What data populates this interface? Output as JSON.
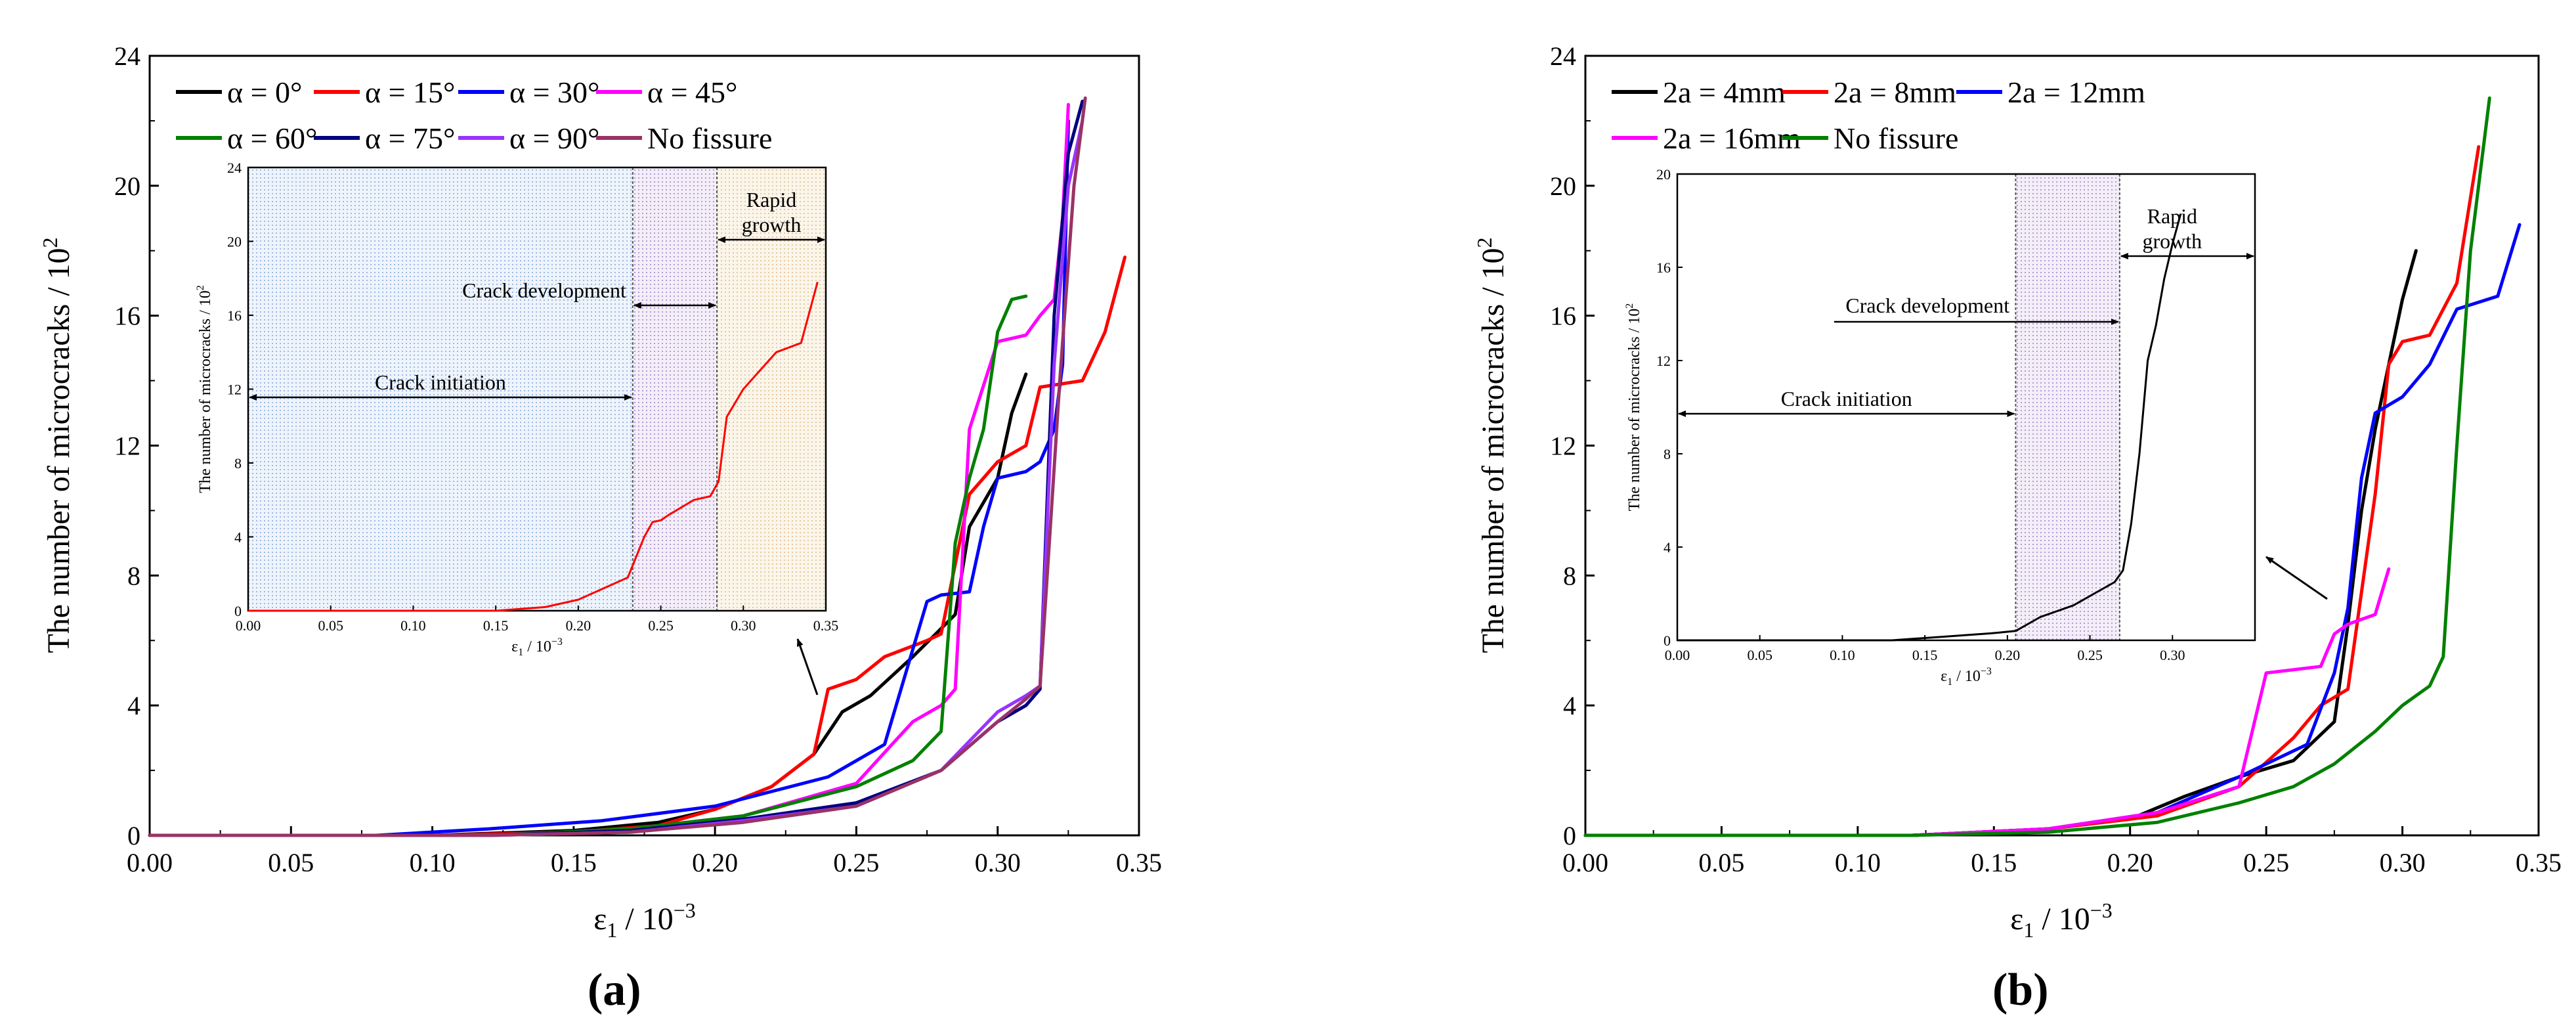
{
  "figure": {
    "ylabel_main": "The number of microcracks / 10",
    "ylabel_sup": "2",
    "xlabel_main": "ε",
    "xlabel_sub": "1",
    "xlabel_rest": " / 10",
    "xlabel_sup": "−3",
    "panel_a": "(a)",
    "panel_b": "(b)"
  },
  "chart_data": [
    {
      "type": "line",
      "panel": "a",
      "xlabel": "ε1 / 10−3",
      "ylabel": "The number of microcracks / 10^2",
      "xlim": [
        0,
        0.35
      ],
      "ylim": [
        0,
        24
      ],
      "xticks": [
        "0.00",
        "0.05",
        "0.10",
        "0.15",
        "0.20",
        "0.25",
        "0.30",
        "0.35"
      ],
      "yticks": [
        "0",
        "4",
        "8",
        "12",
        "16",
        "20",
        "24"
      ],
      "legend": "top-left",
      "series": [
        {
          "name": "α = 0°",
          "color": "#000000",
          "x": [
            0,
            0.1,
            0.15,
            0.18,
            0.2,
            0.22,
            0.235,
            0.245,
            0.255,
            0.27,
            0.285,
            0.29,
            0.3,
            0.305,
            0.31
          ],
          "y": [
            0,
            0,
            0.15,
            0.4,
            0.8,
            1.5,
            2.5,
            3.8,
            4.3,
            5.5,
            6.8,
            9.5,
            11,
            13,
            14.2
          ]
        },
        {
          "name": "α = 15°",
          "color": "#ff0000",
          "x": [
            0,
            0.1,
            0.15,
            0.18,
            0.2,
            0.22,
            0.235,
            0.24,
            0.25,
            0.26,
            0.275,
            0.28,
            0.29,
            0.3,
            0.31,
            0.315,
            0.33,
            0.338,
            0.345
          ],
          "y": [
            0,
            0,
            0.1,
            0.3,
            0.8,
            1.5,
            2.5,
            4.5,
            4.8,
            5.5,
            6.0,
            6.2,
            10.5,
            11.5,
            12.0,
            13.8,
            14.0,
            15.5,
            17.8
          ]
        },
        {
          "name": "α = 30°",
          "color": "#0000ff",
          "x": [
            0,
            0.08,
            0.12,
            0.16,
            0.2,
            0.24,
            0.26,
            0.275,
            0.28,
            0.29,
            0.295,
            0.3,
            0.31,
            0.315,
            0.32,
            0.323,
            0.325
          ],
          "y": [
            0,
            0,
            0.2,
            0.45,
            0.9,
            1.8,
            2.8,
            7.2,
            7.4,
            7.5,
            9.5,
            11,
            11.2,
            11.5,
            12.5,
            14.5,
            22.0
          ]
        },
        {
          "name": "α = 45°",
          "color": "#ff00ff",
          "x": [
            0,
            0.12,
            0.17,
            0.21,
            0.25,
            0.27,
            0.28,
            0.285,
            0.29,
            0.3,
            0.31,
            0.315,
            0.32,
            0.323,
            0.325
          ],
          "y": [
            0,
            0,
            0.2,
            0.6,
            1.6,
            3.5,
            4.0,
            4.5,
            12.5,
            15.2,
            15.4,
            16.0,
            16.5,
            19,
            22.5
          ]
        },
        {
          "name": "α = 60°",
          "color": "#008000",
          "x": [
            0,
            0.12,
            0.17,
            0.21,
            0.25,
            0.27,
            0.28,
            0.285,
            0.29,
            0.295,
            0.3,
            0.305,
            0.31
          ],
          "y": [
            0,
            0,
            0.2,
            0.6,
            1.5,
            2.3,
            3.2,
            9.0,
            11.0,
            12.5,
            15.5,
            16.5,
            16.6
          ]
        },
        {
          "name": "α = 75°",
          "color": "#000080",
          "x": [
            0,
            0.12,
            0.17,
            0.21,
            0.25,
            0.28,
            0.3,
            0.31,
            0.315,
            0.32,
            0.325,
            0.33
          ],
          "y": [
            0,
            0,
            0.15,
            0.5,
            1.0,
            2.0,
            3.5,
            4.0,
            4.5,
            16.0,
            21.0,
            22.6
          ]
        },
        {
          "name": "α = 90°",
          "color": "#9933ff",
          "x": [
            0,
            0.12,
            0.17,
            0.21,
            0.25,
            0.28,
            0.3,
            0.31,
            0.315,
            0.32,
            0.325,
            0.33
          ],
          "y": [
            0,
            0,
            0.1,
            0.45,
            0.9,
            2.0,
            3.8,
            4.3,
            4.6,
            14.5,
            20.0,
            22.0
          ]
        },
        {
          "name": "No fissure",
          "color": "#993366",
          "x": [
            0,
            0.12,
            0.17,
            0.21,
            0.25,
            0.28,
            0.3,
            0.31,
            0.315,
            0.322,
            0.327,
            0.331
          ],
          "y": [
            0,
            0,
            0.1,
            0.4,
            0.9,
            2.0,
            3.5,
            4.2,
            4.6,
            14.0,
            20.0,
            22.7
          ]
        }
      ],
      "inset": {
        "xlim": [
          0,
          0.35
        ],
        "ylim": [
          0,
          24
        ],
        "xticks": [
          "0.00",
          "0.05",
          "0.10",
          "0.15",
          "0.20",
          "0.25",
          "0.30",
          "0.35"
        ],
        "yticks": [
          "0",
          "4",
          "8",
          "12",
          "16",
          "20",
          "24"
        ],
        "xlabel": "ε1 / 10−3",
        "ylabel": "The number of microcracks / 10^2",
        "stage_bounds": [
          0.233,
          0.284,
          0.35
        ],
        "annotations": [
          "Crack initiation",
          "Crack development",
          "Rapid",
          "growth"
        ],
        "curve": {
          "color": "#ff0000",
          "x": [
            0,
            0.15,
            0.18,
            0.2,
            0.215,
            0.23,
            0.24,
            0.245,
            0.25,
            0.255,
            0.27,
            0.28,
            0.285,
            0.29,
            0.3,
            0.31,
            0.32,
            0.335,
            0.345
          ],
          "y": [
            0,
            0,
            0.2,
            0.6,
            1.2,
            1.8,
            4.0,
            4.8,
            4.9,
            5.2,
            6.0,
            6.2,
            7.0,
            10.5,
            12.0,
            13.0,
            14.0,
            14.5,
            17.8
          ]
        }
      }
    },
    {
      "type": "line",
      "panel": "b",
      "xlabel": "ε1 / 10−3",
      "ylabel": "The number of microcracks / 10^2",
      "xlim": [
        0,
        0.35
      ],
      "ylim": [
        0,
        24
      ],
      "xticks": [
        "0.00",
        "0.05",
        "0.10",
        "0.15",
        "0.20",
        "0.25",
        "0.30",
        "0.35"
      ],
      "yticks": [
        "0",
        "4",
        "8",
        "12",
        "16",
        "20",
        "24"
      ],
      "legend": "top-left",
      "series": [
        {
          "name": "2a = 4mm",
          "color": "#000000",
          "x": [
            0,
            0.12,
            0.17,
            0.2,
            0.22,
            0.24,
            0.26,
            0.275,
            0.28,
            0.285,
            0.29,
            0.295,
            0.3,
            0.305
          ],
          "y": [
            0,
            0,
            0.2,
            0.5,
            1.2,
            1.8,
            2.3,
            3.5,
            6.5,
            10.0,
            12.5,
            14.5,
            16.5,
            18.0
          ]
        },
        {
          "name": "2a = 8mm",
          "color": "#ff0000",
          "x": [
            0,
            0.12,
            0.17,
            0.21,
            0.24,
            0.26,
            0.27,
            0.28,
            0.29,
            0.295,
            0.3,
            0.31,
            0.32,
            0.328
          ],
          "y": [
            0,
            0,
            0.2,
            0.6,
            1.5,
            3.0,
            4.0,
            4.5,
            10.5,
            14.5,
            15.2,
            15.4,
            17.0,
            21.2
          ]
        },
        {
          "name": "2a = 12mm",
          "color": "#0000ff",
          "x": [
            0,
            0.12,
            0.17,
            0.21,
            0.24,
            0.265,
            0.275,
            0.28,
            0.285,
            0.29,
            0.3,
            0.31,
            0.32,
            0.335,
            0.343
          ],
          "y": [
            0,
            0,
            0.2,
            0.7,
            1.8,
            2.8,
            5.0,
            7.0,
            11.0,
            13.0,
            13.5,
            14.5,
            16.2,
            16.6,
            18.8
          ]
        },
        {
          "name": "2a = 16mm",
          "color": "#ff00ff",
          "x": [
            0,
            0.12,
            0.17,
            0.21,
            0.24,
            0.25,
            0.26,
            0.27,
            0.275,
            0.28,
            0.29,
            0.295
          ],
          "y": [
            0,
            0,
            0.2,
            0.7,
            1.5,
            5.0,
            5.1,
            5.2,
            6.2,
            6.5,
            6.8,
            8.2
          ]
        },
        {
          "name": "No fissure",
          "color": "#008000",
          "x": [
            0,
            0.12,
            0.17,
            0.21,
            0.24,
            0.26,
            0.275,
            0.29,
            0.3,
            0.31,
            0.315,
            0.32,
            0.325,
            0.332
          ],
          "y": [
            0,
            0,
            0.1,
            0.4,
            1.0,
            1.5,
            2.2,
            3.2,
            4.0,
            4.6,
            5.5,
            12.0,
            18.0,
            22.7
          ]
        }
      ],
      "inset": {
        "xlim": [
          0,
          0.35
        ],
        "ylim": [
          0,
          20
        ],
        "xticks": [
          "0.00",
          "0.05",
          "0.10",
          "0.15",
          "0.20",
          "0.25",
          "0.30"
        ],
        "yticks": [
          "0",
          "4",
          "8",
          "12",
          "16",
          "20"
        ],
        "xlabel": "ε1 / 10−3",
        "ylabel": "The number of microcracks / 10^2",
        "stage_bounds": [
          0.205,
          0.268,
          0.35
        ],
        "annotations": [
          "Crack initiation",
          "Crack development",
          "Rapid",
          "growth"
        ],
        "curve": {
          "color": "#000000",
          "x": [
            0,
            0.13,
            0.16,
            0.19,
            0.205,
            0.22,
            0.24,
            0.255,
            0.265,
            0.27,
            0.275,
            0.28,
            0.285,
            0.29,
            0.295,
            0.3,
            0.305
          ],
          "y": [
            0,
            0,
            0.15,
            0.3,
            0.4,
            1.0,
            1.5,
            2.1,
            2.5,
            3.0,
            5.0,
            8.0,
            12.0,
            13.5,
            15.5,
            17.0,
            18.3
          ]
        }
      }
    }
  ]
}
